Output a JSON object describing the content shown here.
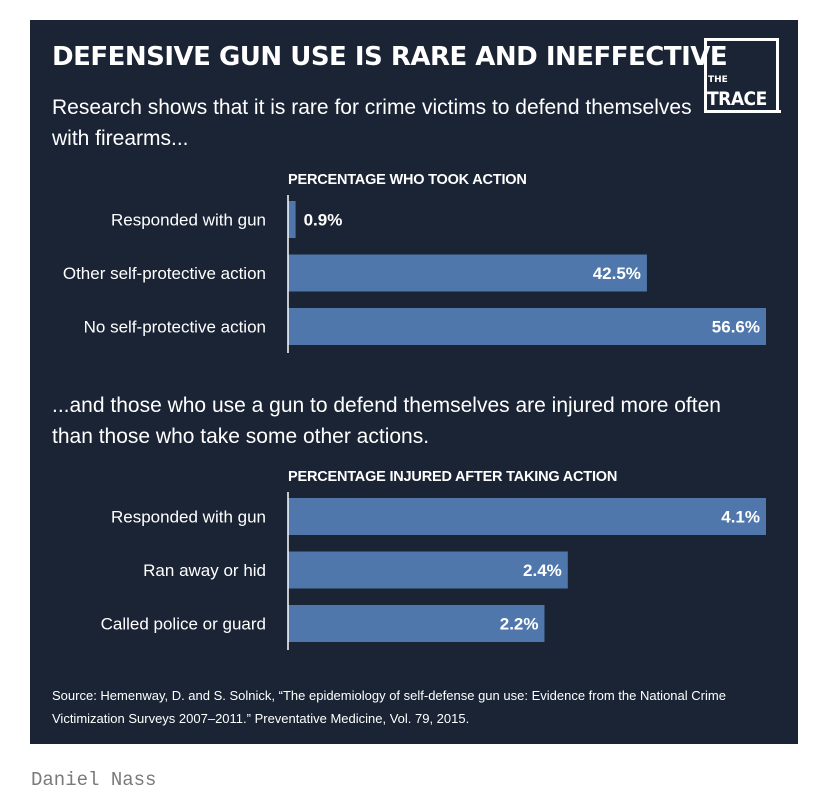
{
  "title": "DEFENSIVE GUN USE IS RARE AND INEFFECTIVE",
  "subtitle1": "Research shows that it is rare for crime victims to defend themselves with firearms...",
  "subtitle2": "...and those who use a gun to defend themselves are injured more often than those who take some other actions.",
  "logo": {
    "small": "THE",
    "big": "TRACE"
  },
  "source": "Source: Hemenway, D. and S. Solnick, “The epidemiology of self-defense gun use: Evidence from the National Crime Victimization Surveys 2007–2011.” Preventative Medicine, Vol. 79, 2015.",
  "credit": "Daniel Nass",
  "colors": {
    "background": "#1b2434",
    "bar": "#4f77ac",
    "text": "#ffffff",
    "credit": "#7a7a7a"
  },
  "chart_data": [
    {
      "type": "bar",
      "orientation": "horizontal",
      "title": "PERCENTAGE WHO TOOK ACTION",
      "categories": [
        "Responded with gun",
        "Other self-protective action",
        "No self-protective action"
      ],
      "values": [
        0.9,
        42.5,
        56.6
      ],
      "labels": [
        "0.9%",
        "42.5%",
        "56.6%"
      ],
      "xlim": [
        0,
        56.6
      ],
      "grid": false
    },
    {
      "type": "bar",
      "orientation": "horizontal",
      "title": "PERCENTAGE INJURED AFTER TAKING ACTION",
      "categories": [
        "Responded with gun",
        "Ran away or hid",
        "Called police or guard"
      ],
      "values": [
        4.1,
        2.4,
        2.2
      ],
      "labels": [
        "4.1%",
        "2.4%",
        "2.2%"
      ],
      "xlim": [
        0,
        4.1
      ],
      "grid": false
    }
  ]
}
